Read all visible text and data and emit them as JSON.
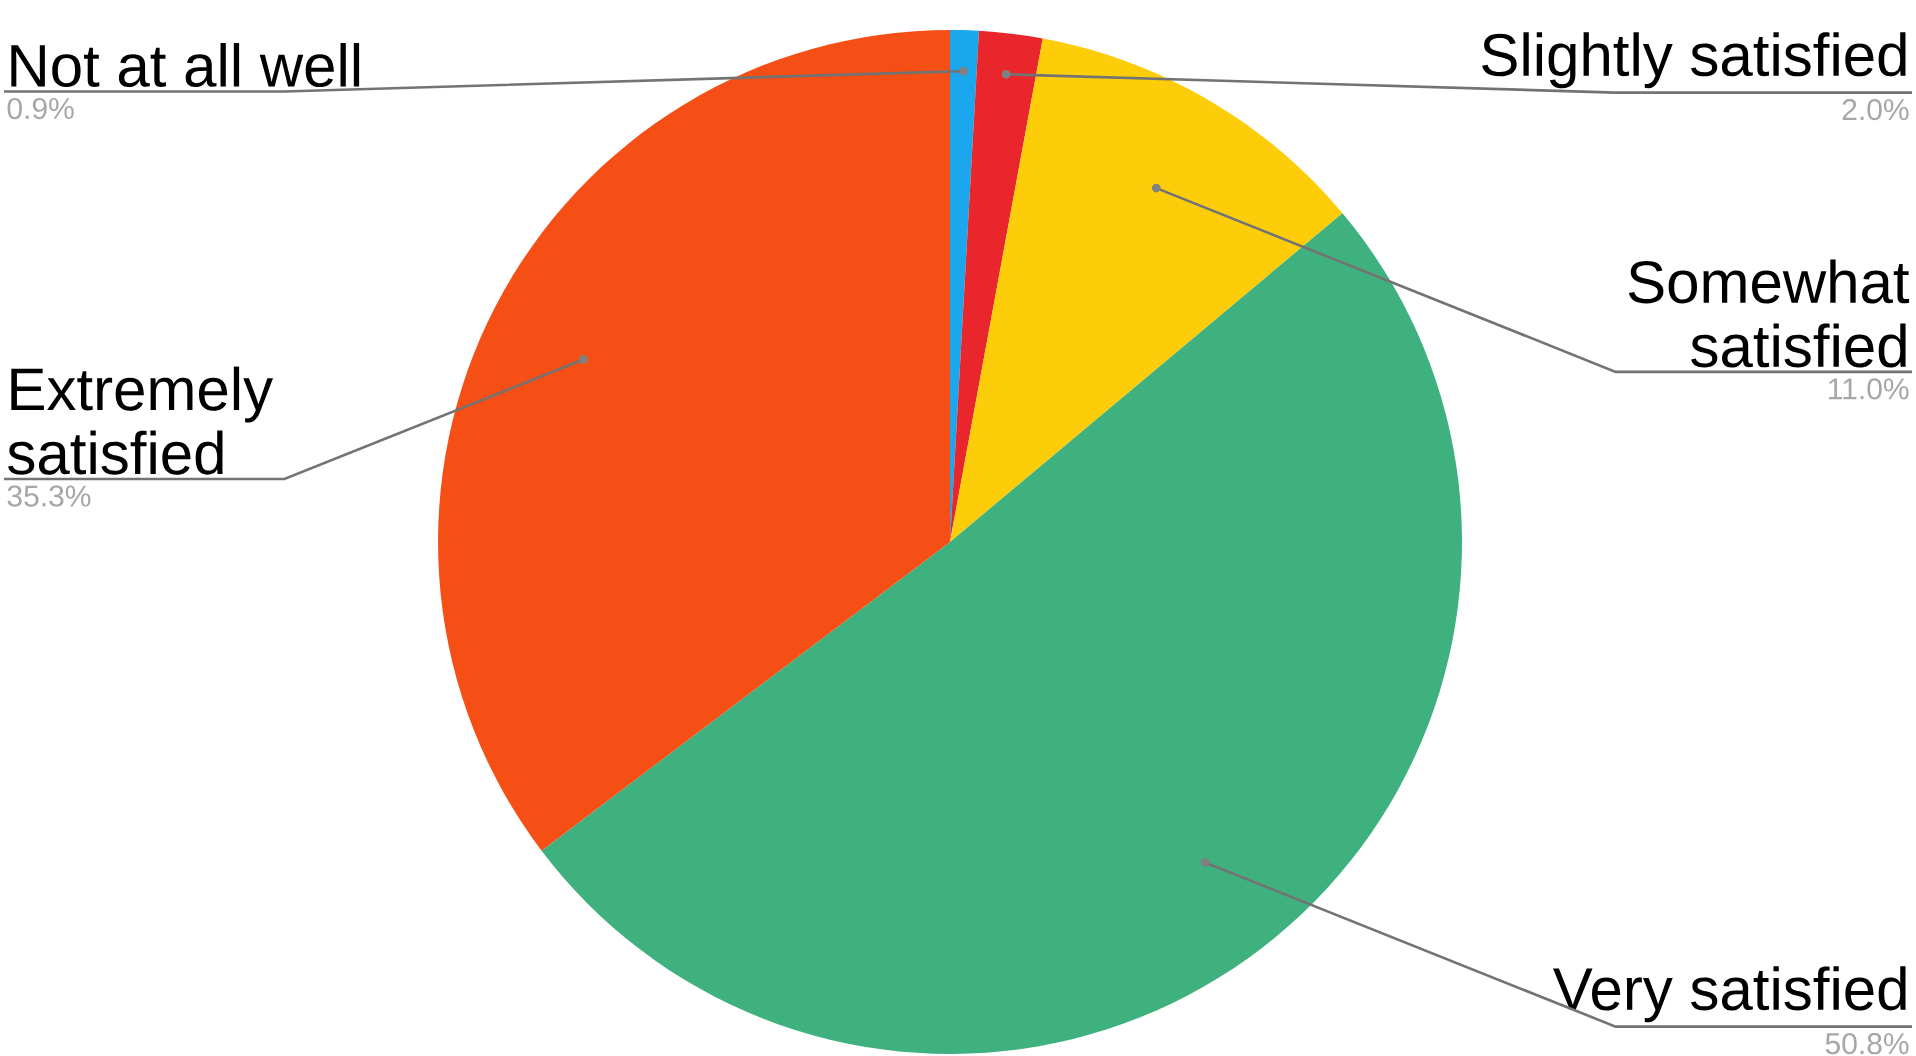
{
  "chart_data": {
    "type": "pie",
    "categories": [
      "Not at all well",
      "Slightly satisfied",
      "Somewhat satisfied",
      "Very satisfied",
      "Extremely satisfied"
    ],
    "values": [
      0.9,
      2.0,
      11.0,
      50.8,
      35.3
    ],
    "colors": [
      "#1aa7ee",
      "#e8262b",
      "#fecd0a",
      "#3eb17f",
      "#f54f16"
    ],
    "value_labels": [
      "0.9%",
      "2.0%",
      "11.0%",
      "50.8%",
      "35.3%"
    ]
  }
}
